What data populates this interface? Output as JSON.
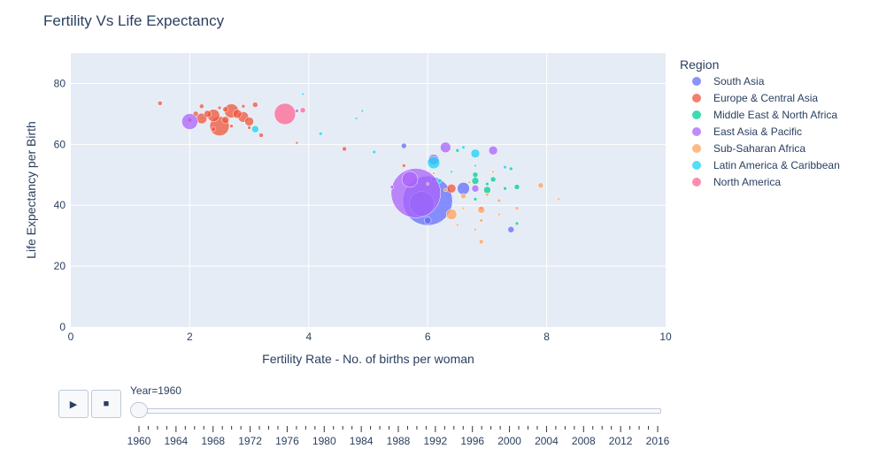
{
  "chart_data": {
    "type": "scatter",
    "title": "Fertility Vs Life Expectancy",
    "xlabel": "Fertility Rate - No. of births per woman",
    "ylabel": "Life Expectancy per Birth",
    "xlim": [
      0,
      10
    ],
    "ylim": [
      0,
      90
    ],
    "x_ticks": [
      0,
      2,
      4,
      6,
      8,
      10
    ],
    "y_ticks": [
      0,
      20,
      40,
      60,
      80
    ],
    "grid": true,
    "legend_title": "Region",
    "legend_position": "right",
    "marker_size": "population",
    "series": [
      {
        "name": "South Asia",
        "color": "#636efa",
        "points": [
          [
            6.0,
            41.5,
            28
          ],
          [
            5.9,
            40.5,
            14
          ],
          [
            6.0,
            35.0,
            4
          ],
          [
            7.4,
            32.0,
            3.5
          ],
          [
            6.6,
            45.5,
            7
          ],
          [
            5.6,
            59.5,
            3
          ],
          [
            6.1,
            48.5,
            2.5
          ]
        ]
      },
      {
        "name": "Europe & Central Asia",
        "color": "#ef553b",
        "points": [
          [
            2.5,
            66.0,
            11
          ],
          [
            2.7,
            71.0,
            8
          ],
          [
            2.4,
            69.5,
            7
          ],
          [
            2.2,
            68.5,
            6
          ],
          [
            2.9,
            69.0,
            6
          ],
          [
            3.0,
            67.5,
            5
          ],
          [
            2.8,
            70.0,
            5
          ],
          [
            2.3,
            70.0,
            4
          ],
          [
            2.6,
            68.0,
            4
          ],
          [
            3.1,
            73.0,
            3
          ],
          [
            1.5,
            73.5,
            2.5
          ],
          [
            2.1,
            70.0,
            3
          ],
          [
            2.6,
            71.5,
            3
          ],
          [
            2.0,
            68.0,
            2.5
          ],
          [
            3.2,
            63.0,
            2.5
          ],
          [
            2.2,
            72.5,
            2.5
          ],
          [
            2.4,
            65.0,
            2.5
          ],
          [
            2.9,
            72.5,
            2
          ],
          [
            3.0,
            65.5,
            2
          ],
          [
            2.5,
            72.0,
            2
          ],
          [
            2.7,
            66.0,
            2
          ],
          [
            4.6,
            58.5,
            2.5
          ],
          [
            3.8,
            60.5,
            1.5
          ],
          [
            6.4,
            45.5,
            5
          ],
          [
            5.6,
            53.0,
            2
          ]
        ]
      },
      {
        "name": "Middle East & North Africa",
        "color": "#00cc96",
        "points": [
          [
            6.8,
            48.0,
            4
          ],
          [
            7.0,
            45.0,
            4
          ],
          [
            7.1,
            48.5,
            3
          ],
          [
            7.5,
            46.0,
            3
          ],
          [
            6.5,
            58.0,
            2
          ],
          [
            6.2,
            48.0,
            2
          ],
          [
            7.3,
            45.5,
            2
          ],
          [
            6.8,
            42.0,
            2
          ],
          [
            7.4,
            52.0,
            2
          ],
          [
            7.5,
            34.0,
            2
          ],
          [
            6.8,
            50.0,
            3
          ],
          [
            7.0,
            47.0,
            2
          ]
        ]
      },
      {
        "name": "East Asia & Pacific",
        "color": "#ab63fa",
        "points": [
          [
            5.8,
            44.0,
            28
          ],
          [
            5.7,
            48.5,
            9
          ],
          [
            6.1,
            55.0,
            6
          ],
          [
            6.3,
            59.0,
            6
          ],
          [
            7.1,
            58.0,
            5
          ],
          [
            2.0,
            67.5,
            9
          ],
          [
            6.8,
            45.5,
            4
          ],
          [
            5.4,
            46.0,
            2
          ],
          [
            6.9,
            39.0,
            2
          ],
          [
            3.8,
            71.0,
            2
          ]
        ]
      },
      {
        "name": "Sub-Saharan Africa",
        "color": "#ffa15a",
        "points": [
          [
            6.4,
            37.0,
            6
          ],
          [
            6.9,
            38.5,
            4
          ],
          [
            7.9,
            46.5,
            3
          ],
          [
            6.6,
            43.0,
            3
          ],
          [
            6.9,
            28.0,
            2.5
          ],
          [
            7.2,
            41.5,
            2
          ],
          [
            6.3,
            45.0,
            2
          ],
          [
            6.9,
            35.0,
            2
          ],
          [
            7.5,
            39.0,
            2
          ],
          [
            7.0,
            43.5,
            2
          ],
          [
            8.2,
            42.0,
            1.5
          ],
          [
            6.7,
            47.5,
            1.5
          ],
          [
            6.5,
            33.5,
            1.5
          ],
          [
            7.2,
            37.0,
            1.5
          ],
          [
            6.6,
            39.0,
            1.5
          ],
          [
            7.1,
            51.0,
            1.5
          ],
          [
            6.1,
            50.5,
            1.5
          ],
          [
            6.8,
            32.0,
            1.5
          ],
          [
            6.0,
            47.0,
            1.5
          ]
        ]
      },
      {
        "name": "Latin America & Caribbean",
        "color": "#19d3f3",
        "points": [
          [
            6.1,
            54.0,
            7
          ],
          [
            6.8,
            57.0,
            5
          ],
          [
            3.1,
            65.0,
            4
          ],
          [
            6.2,
            48.0,
            2.5
          ],
          [
            5.1,
            57.5,
            2
          ],
          [
            4.2,
            63.5,
            2
          ],
          [
            6.6,
            59.0,
            2
          ],
          [
            7.3,
            52.5,
            2
          ],
          [
            6.8,
            53.0,
            1.5
          ],
          [
            6.4,
            51.0,
            1.5
          ],
          [
            4.9,
            71.0,
            1.5
          ],
          [
            3.9,
            76.5,
            1.5
          ],
          [
            4.8,
            68.5,
            1.5
          ]
        ]
      },
      {
        "name": "North America",
        "color": "#ff6692",
        "points": [
          [
            3.6,
            70.0,
            12
          ],
          [
            3.9,
            71.2,
            3
          ]
        ]
      }
    ]
  },
  "animation": {
    "play_icon": "▶",
    "stop_icon": "■",
    "current_label": "Year=1960",
    "years": [
      "1960",
      "1964",
      "1968",
      "1972",
      "1976",
      "1980",
      "1984",
      "1988",
      "1992",
      "1996",
      "2000",
      "2004",
      "2008",
      "2012",
      "2016"
    ],
    "first_year": 1960,
    "last_year": 2016,
    "current_year": 1960
  }
}
